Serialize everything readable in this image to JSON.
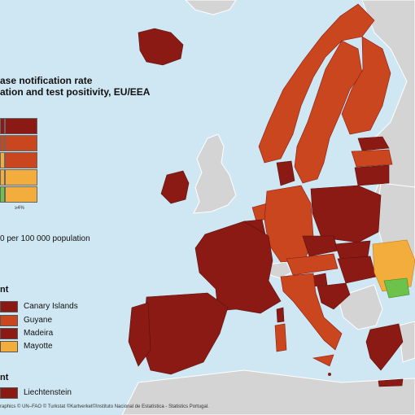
{
  "map": {
    "title_line1": "ase notification rate",
    "title_line2": "ation and test positivity, EU/EEA",
    "matrix_label": "≥4%",
    "population_note": "0 per 100 000 population",
    "section1_heading": "nt",
    "section2_heading": "nt",
    "legend_items": [
      {
        "label": "Canary Islands",
        "color": "#8b1a14"
      },
      {
        "label": "Guyane",
        "color": "#c9461e"
      },
      {
        "label": "Madeira",
        "color": "#8b1a14"
      },
      {
        "label": "Mayotte",
        "color": "#f2ad3c"
      }
    ],
    "legend_items2": [
      {
        "label": "Liechtenstein",
        "color": "#8b1a14"
      }
    ],
    "credits_line1": "raphics © UN–FAO © Turkstat ©Kartverket©Instituto Nacional de Estatística - Statistics Portugal."
  },
  "colors": {
    "dark_red": "#8b1a14",
    "red": "#c9461e",
    "orange": "#f2ad3c",
    "green": "#6cc24a",
    "grey": "#d4d4d4",
    "sea": "#cfe7f2"
  }
}
